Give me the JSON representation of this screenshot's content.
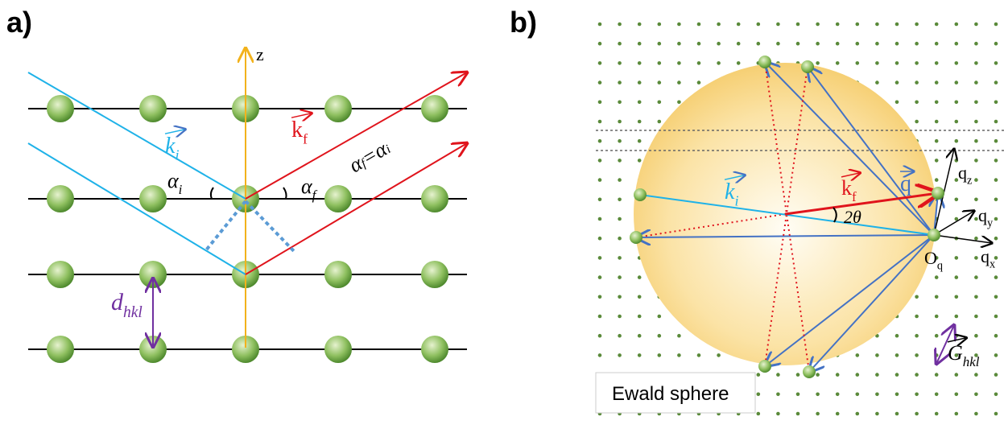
{
  "panel_a": {
    "label": "a)",
    "axis": "z",
    "k_in": {
      "base": "k",
      "sub": "i"
    },
    "k_out": {
      "base": "k",
      "sub": "f"
    },
    "alpha_in": {
      "base": "α",
      "sub": "i"
    },
    "alpha_out": {
      "base": "α",
      "sub": "f"
    },
    "equality": {
      "left": "α",
      "left_sub": "f",
      "eq": "=",
      "right": "α",
      "right_sub": "i"
    },
    "spacing": {
      "base": "d",
      "sub": "hkl"
    }
  },
  "panel_b": {
    "label": "b)",
    "k_in": {
      "base": "k",
      "sub": "i"
    },
    "k_out": {
      "base": "k",
      "sub": "f"
    },
    "q": "q",
    "angle": "2θ",
    "qz": {
      "base": "q",
      "sub": "z"
    },
    "qy": {
      "base": "q",
      "sub": "y"
    },
    "qx": {
      "base": "q",
      "sub": "x"
    },
    "origin": {
      "base": "O",
      "sub": "q"
    },
    "reciprocal": {
      "base": "G",
      "sub": "hkl"
    },
    "legend": "Ewald sphere"
  }
}
